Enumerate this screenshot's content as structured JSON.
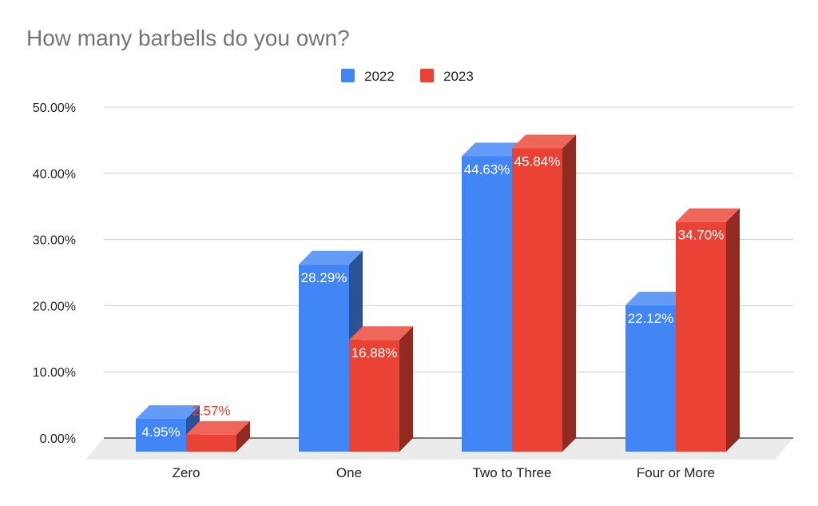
{
  "chart_data": {
    "type": "bar",
    "title": "How many barbells do you own?",
    "categories": [
      "Zero",
      "One",
      "Two to Three",
      "Four or More"
    ],
    "series": [
      {
        "name": "2022",
        "values": [
          4.95,
          28.29,
          44.63,
          22.12
        ],
        "labels": [
          "4.95%",
          "28.29%",
          "44.63%",
          "22.12%"
        ]
      },
      {
        "name": "2023",
        "values": [
          2.57,
          16.88,
          45.84,
          34.7
        ],
        "labels": [
          "2.57%",
          "16.88%",
          "45.84%",
          "34.70%"
        ]
      }
    ],
    "yticks": [
      "0.00%",
      "10.00%",
      "20.00%",
      "30.00%",
      "40.00%",
      "50.00%"
    ],
    "ylim": [
      0,
      50
    ],
    "grid": true,
    "legend": "top-center",
    "style": "3d",
    "colors": {
      "2022": "#4285f4",
      "2023": "#ea4335"
    }
  }
}
